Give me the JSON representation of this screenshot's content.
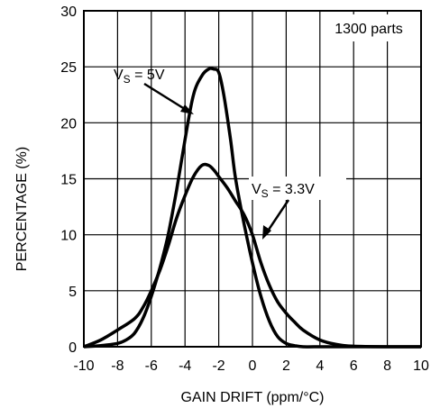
{
  "chart_data": {
    "type": "line",
    "xlabel": "GAIN DRIFT (ppm/°C)",
    "ylabel": "PERCENTAGE (%)",
    "xlim": [
      -10,
      10
    ],
    "ylim": [
      0,
      30
    ],
    "x_ticks": [
      -10,
      -8,
      -6,
      -4,
      -2,
      0,
      2,
      4,
      6,
      8,
      10
    ],
    "y_ticks": [
      0,
      5,
      10,
      15,
      20,
      25,
      30
    ],
    "grid": true,
    "legend_box": "1300 parts",
    "annotations": [
      {
        "base": "V",
        "sub": "S",
        "rest": " = 5V"
      },
      {
        "base": "V",
        "sub": "S",
        "rest": " = 3.3V"
      }
    ],
    "series": [
      {
        "x": [
          -10,
          -9,
          -8,
          -7.5,
          -7,
          -6.5,
          -6,
          -5.5,
          -5,
          -4.5,
          -4,
          -3.5,
          -3,
          -2.6,
          -2.3,
          -2,
          -1.7,
          -1.3,
          -1,
          -0.5,
          0,
          0.5,
          1,
          1.5,
          2,
          2.5,
          3,
          4,
          5,
          6,
          8,
          10
        ],
        "y": [
          0,
          0.1,
          0.3,
          0.6,
          1.2,
          2.5,
          4.5,
          7.0,
          10.0,
          14.0,
          18.5,
          22.5,
          24.2,
          24.8,
          24.8,
          24.5,
          22.5,
          18.5,
          15.0,
          11.0,
          7.5,
          4.5,
          2.3,
          0.9,
          0.3,
          0.1,
          0,
          0,
          0,
          0,
          0,
          0
        ]
      },
      {
        "x": [
          -10,
          -9,
          -8,
          -7,
          -6.5,
          -6,
          -5.5,
          -5,
          -4.5,
          -4,
          -3.5,
          -3,
          -2.6,
          -2.3,
          -2,
          -1.5,
          -1,
          -0.5,
          0,
          0.5,
          1,
          1.5,
          2,
          2.5,
          3,
          4,
          5,
          6,
          8,
          10
        ],
        "y": [
          0,
          0.6,
          1.5,
          2.5,
          3.5,
          5.0,
          6.8,
          9.0,
          11.5,
          13.5,
          15.2,
          16.2,
          16.2,
          15.8,
          15.2,
          14.2,
          13.0,
          11.8,
          10.0,
          7.5,
          5.5,
          4.0,
          3.0,
          2.2,
          1.5,
          0.6,
          0.2,
          0.05,
          0,
          0
        ]
      }
    ]
  }
}
